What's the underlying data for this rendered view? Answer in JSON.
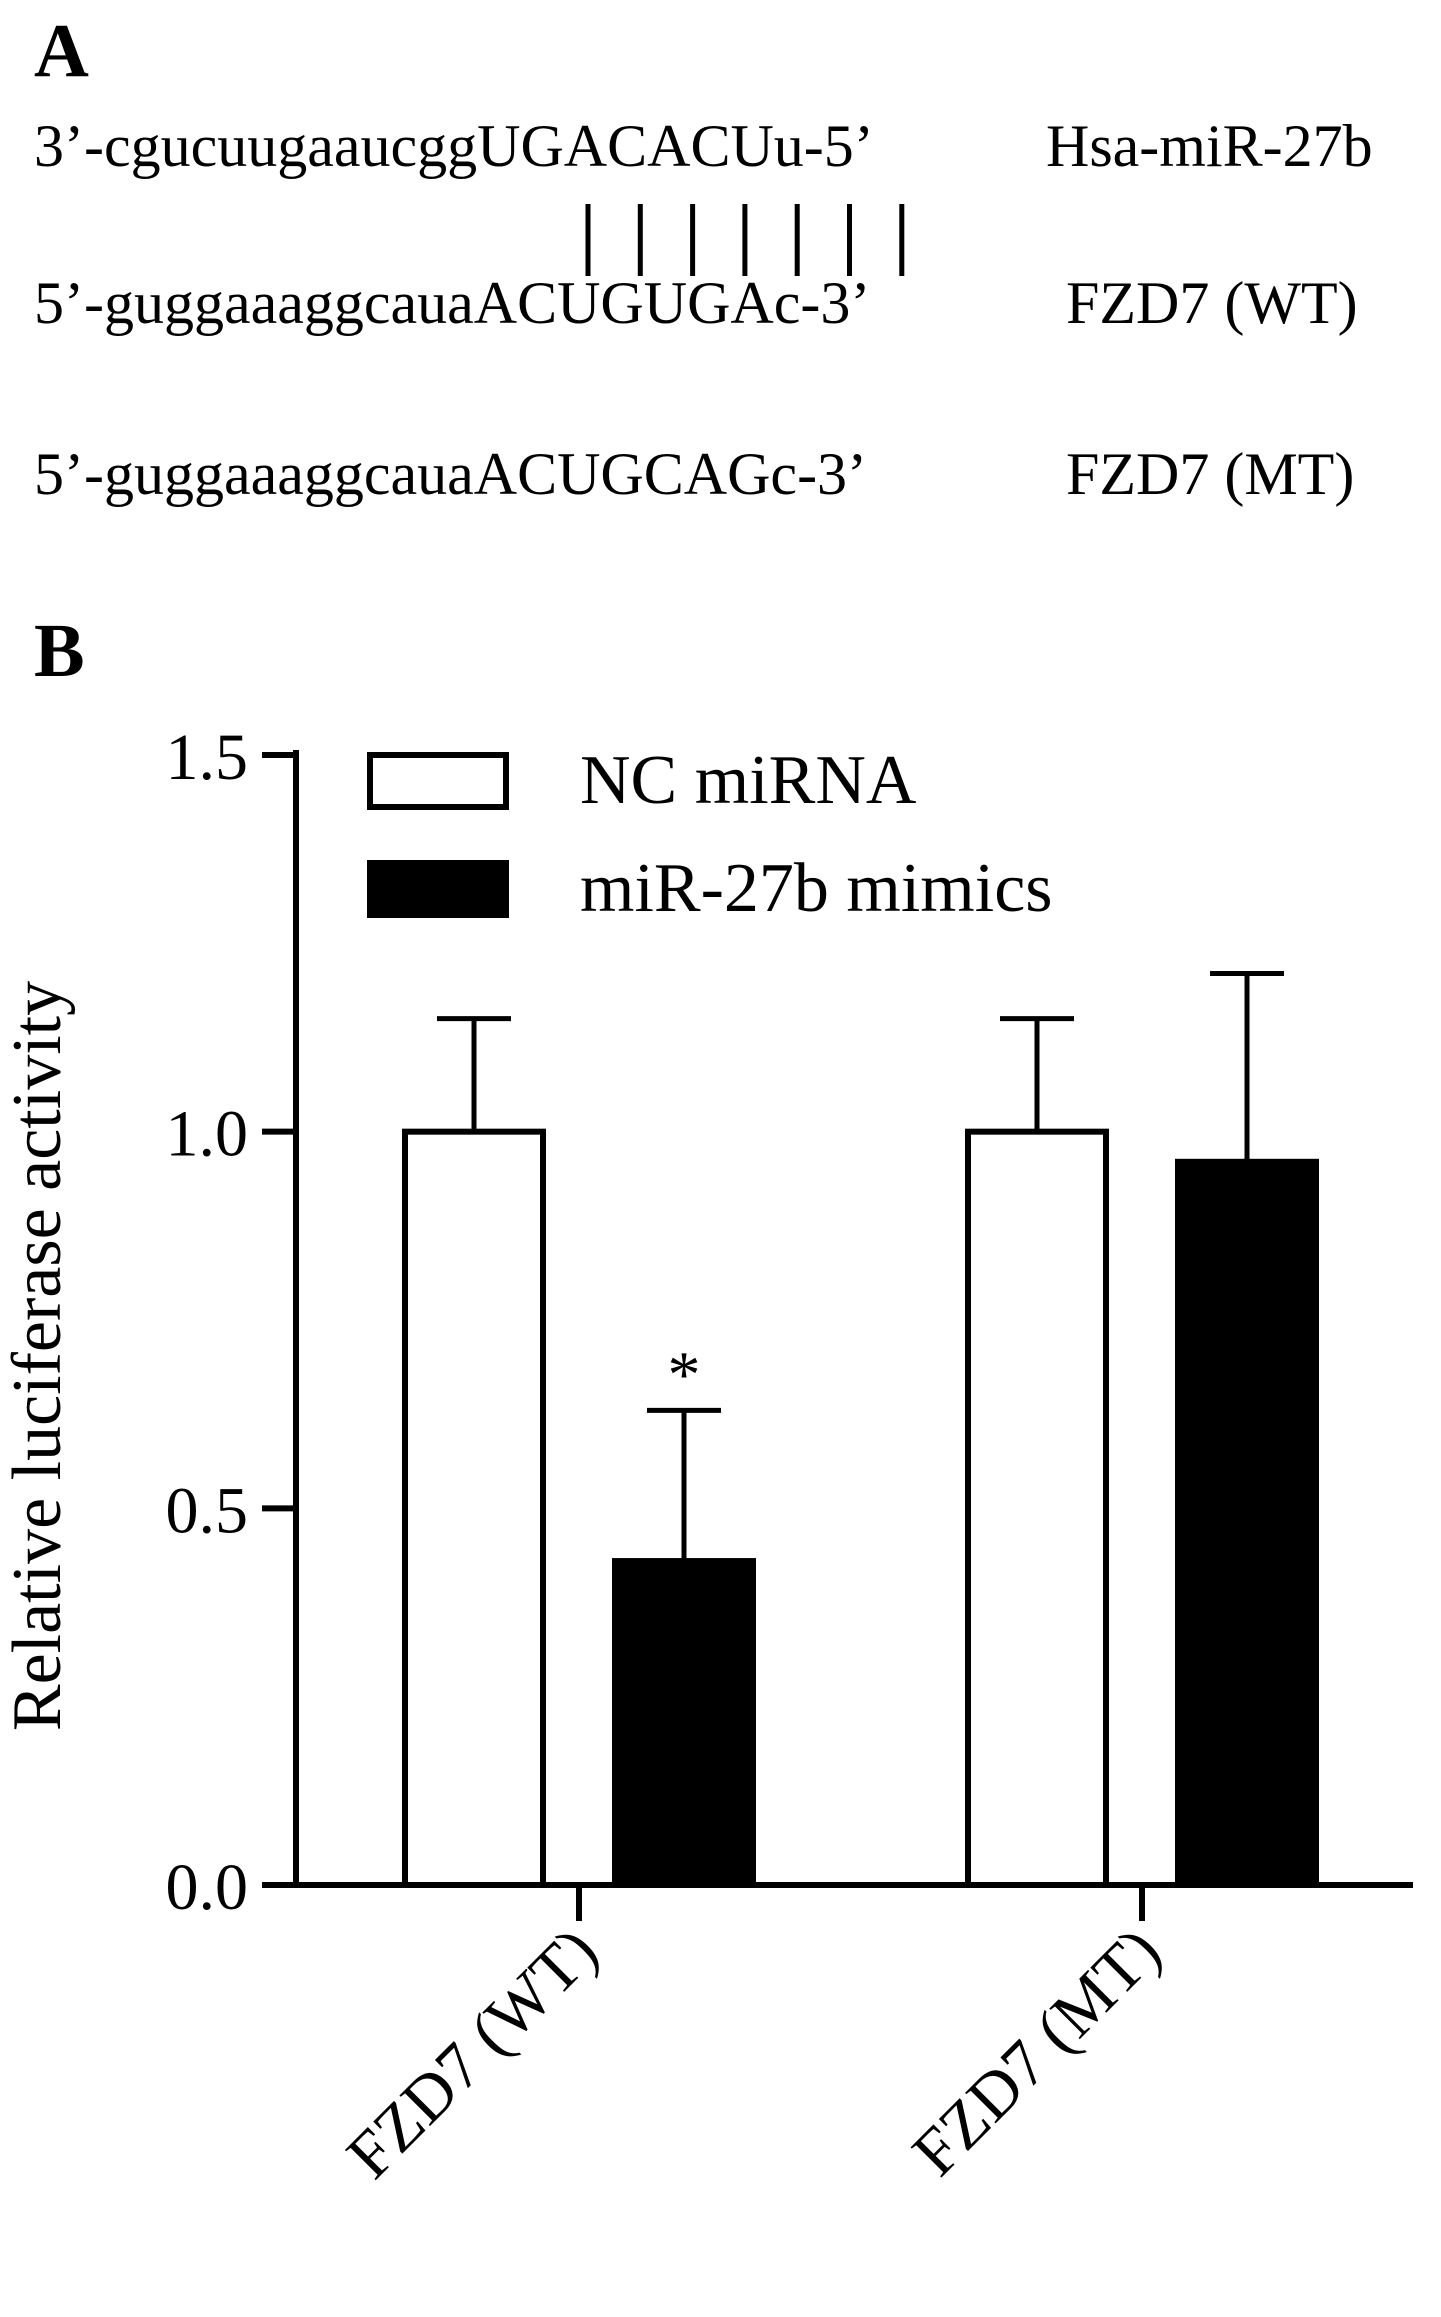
{
  "panel_a": {
    "label": "A",
    "sequences": [
      {
        "seq": "3’-cgucuugaaucggUGACACUu-5’",
        "name": "Hsa-miR-27b"
      },
      {
        "seq": "5’-guggaaaggcauaACUGUGAc-3’",
        "name": "FZD7 (WT)"
      },
      {
        "seq": "5’-guggaaaggcauaACUGCAGc-3’",
        "name": "FZD7 (MT)"
      }
    ],
    "pairing_lines": 7
  },
  "panel_b": {
    "label": "B"
  },
  "colors": {
    "nc_fill": "#ffffff",
    "mimic_fill": "#000000",
    "stroke": "#000000"
  },
  "chart_data": {
    "type": "bar",
    "categories": [
      "FZD7 (WT)",
      "FZD7 (MT)"
    ],
    "series": [
      {
        "name": "NC miRNA",
        "values": [
          1.0,
          1.0
        ],
        "errors": [
          0.15,
          0.15
        ],
        "fill": "#ffffff"
      },
      {
        "name": "miR-27b mimics",
        "values": [
          0.43,
          0.96
        ],
        "errors": [
          0.2,
          0.25
        ],
        "fill": "#000000"
      }
    ],
    "ylabel": "Relative luciferase activity",
    "xlabel": "",
    "ylim": [
      0,
      1.5
    ],
    "yticks": [
      "0.0",
      "0.5",
      "1.0",
      "1.5"
    ],
    "ytick_values": [
      0,
      0.5,
      1.0,
      1.5
    ],
    "annotations": [
      {
        "category": "FZD7 (WT)",
        "series": "miR-27b mimics",
        "text": "*"
      }
    ],
    "legend_position": "top-center",
    "grid": false
  }
}
